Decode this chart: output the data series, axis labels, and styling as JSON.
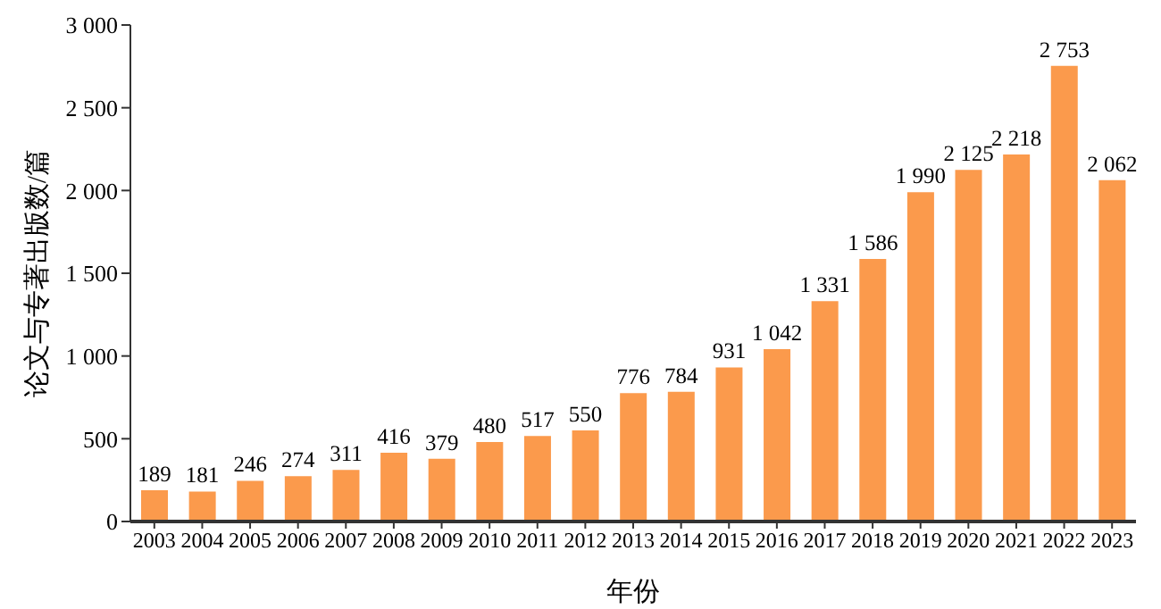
{
  "chart_data": {
    "type": "bar",
    "xlabel": "年份",
    "ylabel": "论文与专著出版数/篇",
    "categories": [
      "2003",
      "2004",
      "2005",
      "2006",
      "2007",
      "2008",
      "2009",
      "2010",
      "2011",
      "2012",
      "2013",
      "2014",
      "2015",
      "2016",
      "2017",
      "2018",
      "2019",
      "2020",
      "2021",
      "2022",
      "2023"
    ],
    "values": [
      189,
      181,
      246,
      274,
      311,
      416,
      379,
      480,
      517,
      550,
      776,
      784,
      931,
      1042,
      1331,
      1586,
      1990,
      2125,
      2218,
      2753,
      2062
    ],
    "value_labels": [
      "189",
      "181",
      "246",
      "274",
      "311",
      "416",
      "379",
      "480",
      "517",
      "550",
      "776",
      "784",
      "931",
      "1 042",
      "1 331",
      "1 586",
      "1 990",
      "2 125",
      "2 218",
      "2 753",
      "2 062"
    ],
    "color": "#fb9a4c",
    "ylim": [
      0,
      3000
    ],
    "yticks": [
      0,
      500,
      {
        "value": 1000,
        "label": "1 000"
      },
      {
        "value": 1500,
        "label": "1 500"
      },
      {
        "value": 2000,
        "label": "2 000"
      },
      {
        "value": 2500,
        "label": "2 500"
      },
      {
        "value": 3000,
        "label": "3 000"
      }
    ],
    "grid": false,
    "legend": false
  }
}
